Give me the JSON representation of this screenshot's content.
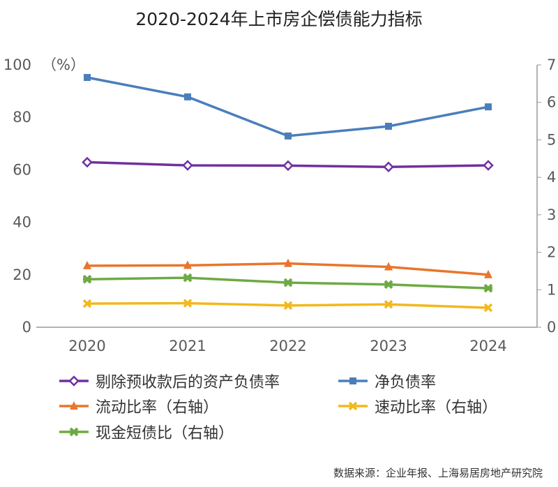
{
  "chart_data": {
    "type": "line",
    "title": "2020-2024年上市房企偿债能力指标",
    "categories": [
      "2020",
      "2021",
      "2022",
      "2023",
      "2024"
    ],
    "y_left": {
      "unit": "（%）",
      "range": [
        0,
        100
      ],
      "ticks": [
        "0",
        "20",
        "40",
        "60",
        "80",
        "100"
      ]
    },
    "y_right": {
      "range": [
        0,
        7
      ],
      "ticks": [
        "0",
        "1",
        "2",
        "3",
        "4",
        "5",
        "6",
        "7"
      ]
    },
    "grid": false,
    "legend_position": "bottom",
    "series": [
      {
        "name": "剔除预收款后的资产负债率",
        "axis": "left",
        "color": "#7030A0",
        "marker": "diamond",
        "values": [
          62.9,
          61.7,
          61.6,
          61.1,
          61.7
        ]
      },
      {
        "name": "净负债率",
        "axis": "left",
        "color": "#4A7EBB",
        "marker": "square",
        "values": [
          95.2,
          87.8,
          72.9,
          76.6,
          84.0
        ]
      },
      {
        "name": "流动比率（右轴）",
        "axis": "right",
        "color": "#E8762C",
        "marker": "triangle",
        "values": [
          1.64,
          1.65,
          1.7,
          1.61,
          1.4
        ]
      },
      {
        "name": "速动比率（右轴）",
        "axis": "right",
        "color": "#F2B81C",
        "marker": "x",
        "values": [
          0.63,
          0.64,
          0.58,
          0.61,
          0.52
        ]
      },
      {
        "name": "现金短债比（右轴）",
        "axis": "right",
        "color": "#6EAA44",
        "marker": "star",
        "values": [
          1.28,
          1.32,
          1.19,
          1.14,
          1.04
        ]
      }
    ]
  },
  "source": "数据来源：企业年报、上海易居房地产研究院"
}
